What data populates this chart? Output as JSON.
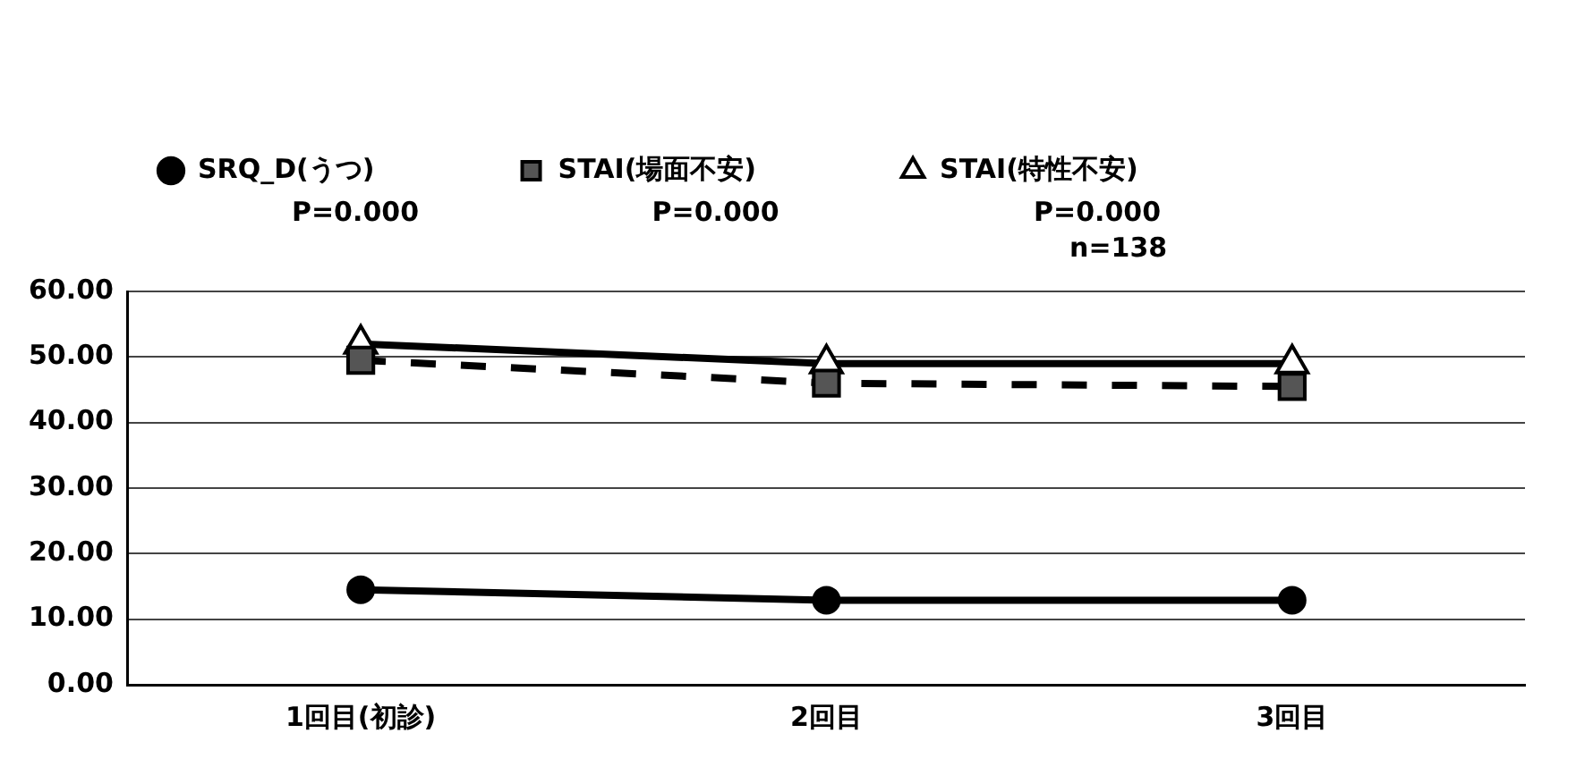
{
  "chart_data": {
    "type": "line",
    "categories": [
      "1回目(初診)",
      "2回目",
      "3回目"
    ],
    "series": [
      {
        "name": "SRQ_D(うつ)",
        "color": "#000000",
        "marker": "circle",
        "line_style": "solid",
        "values": [
          14.5,
          12.9,
          12.9
        ]
      },
      {
        "name": "STAI(場面不安)",
        "color": "#000000",
        "marker": "square",
        "line_style": "dashed",
        "values": [
          49.5,
          46,
          45.5
        ]
      },
      {
        "name": "STAI(特性不安)",
        "color": "#000000",
        "marker": "triangle",
        "line_style": "solid",
        "values": [
          52,
          49,
          49
        ]
      }
    ],
    "annotations": [
      "P=0.000",
      "P=0.000",
      "P=0.000",
      "n=138"
    ],
    "ylim": [
      0,
      60
    ],
    "yticks": [
      {
        "value": 0,
        "label": "0.00"
      },
      {
        "value": 10,
        "label": "10.00"
      },
      {
        "value": 20,
        "label": "20.00"
      },
      {
        "value": 30,
        "label": "30.00"
      },
      {
        "value": 40,
        "label": "40.00"
      },
      {
        "value": 50,
        "label": "50.00"
      },
      {
        "value": 60,
        "label": "60.00"
      }
    ],
    "grid": "y",
    "legend": "top"
  }
}
